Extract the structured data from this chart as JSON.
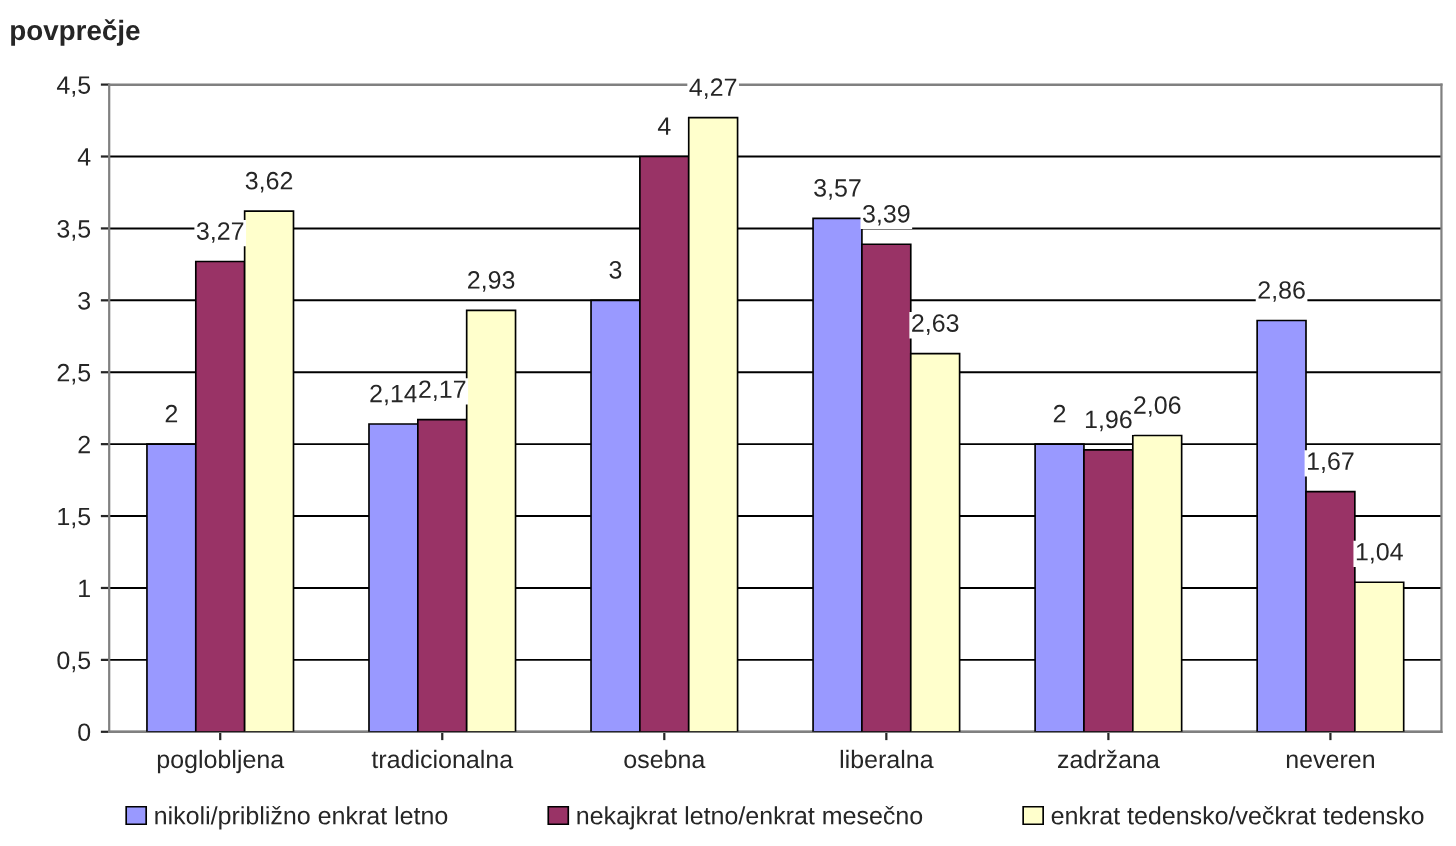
{
  "chart_data": {
    "type": "bar",
    "ylabel": "povprečje",
    "categories": [
      "poglobljena",
      "tradicionalna",
      "osebna",
      "liberalna",
      "zadržana",
      "neveren"
    ],
    "series": [
      {
        "name": "nikoli/približno enkrat letno",
        "color": "#9999ff",
        "values": [
          2,
          2.14,
          3,
          3.57,
          2,
          2.86
        ],
        "value_labels": [
          "2",
          "2,14",
          "3",
          "3,57",
          "2",
          "2,86"
        ]
      },
      {
        "name": "nekajkrat letno/enkrat mesečno",
        "color": "#993366",
        "values": [
          3.27,
          2.17,
          4,
          3.39,
          1.96,
          1.67
        ],
        "value_labels": [
          "3,27",
          "2,17",
          "4",
          "3,39",
          "1,96",
          "1,67"
        ]
      },
      {
        "name": "enkrat tedensko/večkrat tedensko",
        "color": "#ffffcc",
        "values": [
          3.62,
          2.93,
          4.27,
          2.63,
          2.06,
          1.04
        ],
        "value_labels": [
          "3,62",
          "2,93",
          "4,27",
          "2,63",
          "2,06",
          "1,04"
        ]
      }
    ],
    "ylim": [
      0,
      4.5
    ],
    "yticks": [
      0,
      {
        "value": 0.5,
        "label": "0,5"
      },
      1,
      {
        "value": 1.5,
        "label": "1,5"
      },
      2,
      {
        "value": 2.5,
        "label": "2,5"
      },
      3,
      {
        "value": 3.5,
        "label": "3,5"
      },
      4,
      {
        "value": 4.5,
        "label": "4,5"
      }
    ],
    "grid": "y",
    "legend": "bottom"
  }
}
